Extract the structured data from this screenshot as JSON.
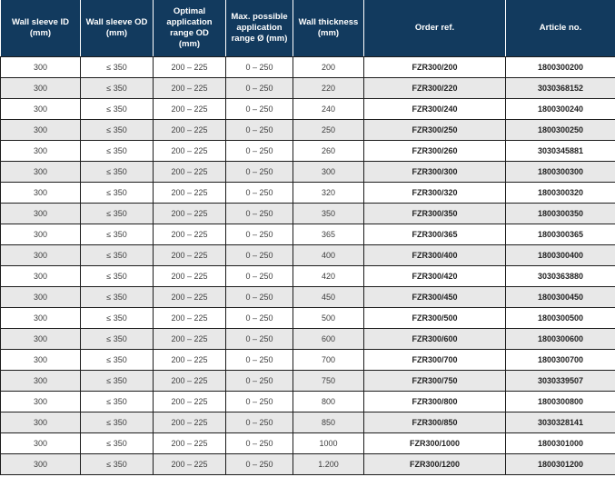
{
  "colors": {
    "header_bg": "#123a5e",
    "header_text": "#ffffff",
    "row_alt_bg": "#e8e8e8",
    "row_bg": "#ffffff",
    "border_color": "#1c1c1c",
    "body_text": "#3d3d3d",
    "bold_text": "#222222"
  },
  "table": {
    "columns": [
      "Wall sleeve ID\n(mm)",
      "Wall sleeve OD\n(mm)",
      "Optimal\napplication\nrange OD\n(mm)",
      "Max. possible\napplication\nrange Ø (mm)",
      "Wall thickness\n(mm)",
      "Order ref.",
      "Article no."
    ],
    "bold_columns": [
      5,
      6
    ],
    "rows": [
      [
        "300",
        "≤ 350",
        "200 – 225",
        "0 – 250",
        "200",
        "FZR300/200",
        "1800300200"
      ],
      [
        "300",
        "≤ 350",
        "200 – 225",
        "0 – 250",
        "220",
        "FZR300/220",
        "3030368152"
      ],
      [
        "300",
        "≤ 350",
        "200 – 225",
        "0 – 250",
        "240",
        "FZR300/240",
        "1800300240"
      ],
      [
        "300",
        "≤ 350",
        "200 – 225",
        "0 – 250",
        "250",
        "FZR300/250",
        "1800300250"
      ],
      [
        "300",
        "≤ 350",
        "200 – 225",
        "0 – 250",
        "260",
        "FZR300/260",
        "3030345881"
      ],
      [
        "300",
        "≤ 350",
        "200 – 225",
        "0 – 250",
        "300",
        "FZR300/300",
        "1800300300"
      ],
      [
        "300",
        "≤ 350",
        "200 – 225",
        "0 – 250",
        "320",
        "FZR300/320",
        "1800300320"
      ],
      [
        "300",
        "≤ 350",
        "200 – 225",
        "0 – 250",
        "350",
        "FZR300/350",
        "1800300350"
      ],
      [
        "300",
        "≤ 350",
        "200 – 225",
        "0 – 250",
        "365",
        "FZR300/365",
        "1800300365"
      ],
      [
        "300",
        "≤ 350",
        "200 – 225",
        "0 – 250",
        "400",
        "FZR300/400",
        "1800300400"
      ],
      [
        "300",
        "≤ 350",
        "200 – 225",
        "0 – 250",
        "420",
        "FZR300/420",
        "3030363880"
      ],
      [
        "300",
        "≤ 350",
        "200 – 225",
        "0 – 250",
        "450",
        "FZR300/450",
        "1800300450"
      ],
      [
        "300",
        "≤ 350",
        "200 – 225",
        "0 – 250",
        "500",
        "FZR300/500",
        "1800300500"
      ],
      [
        "300",
        "≤ 350",
        "200 – 225",
        "0 – 250",
        "600",
        "FZR300/600",
        "1800300600"
      ],
      [
        "300",
        "≤ 350",
        "200 – 225",
        "0 – 250",
        "700",
        "FZR300/700",
        "1800300700"
      ],
      [
        "300",
        "≤ 350",
        "200 – 225",
        "0 – 250",
        "750",
        "FZR300/750",
        "3030339507"
      ],
      [
        "300",
        "≤ 350",
        "200 – 225",
        "0 – 250",
        "800",
        "FZR300/800",
        "1800300800"
      ],
      [
        "300",
        "≤ 350",
        "200 – 225",
        "0 – 250",
        "850",
        "FZR300/850",
        "3030328141"
      ],
      [
        "300",
        "≤ 350",
        "200 – 225",
        "0 – 250",
        "1000",
        "FZR300/1000",
        "1800301000"
      ],
      [
        "300",
        "≤ 350",
        "200 – 225",
        "0 – 250",
        "1.200",
        "FZR300/1200",
        "1800301200"
      ]
    ]
  }
}
